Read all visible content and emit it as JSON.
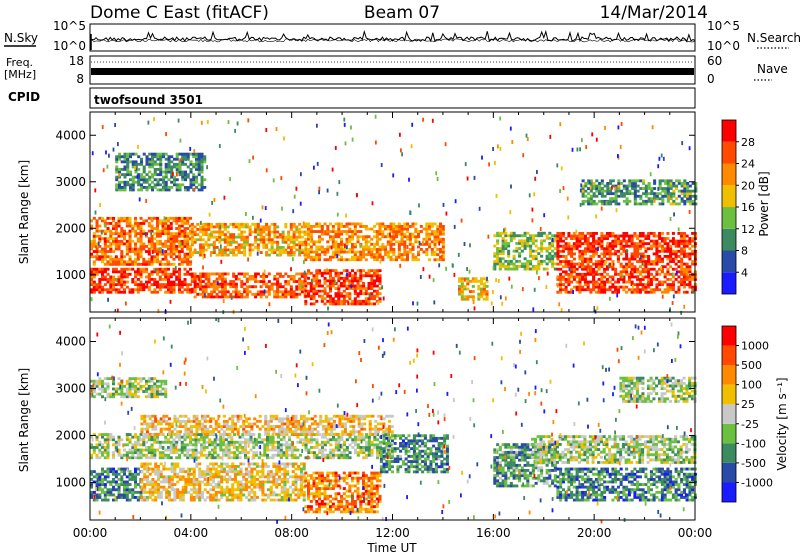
{
  "header": {
    "site": "Dome C East (fitACF)",
    "beam": "Beam 07",
    "date": "14/Mar/2014"
  },
  "top_panels": {
    "nsky_label": "N.Sky",
    "nsky_ticks": [
      "10^5",
      "10^0"
    ],
    "nsearch_label": "N.Search",
    "nsearch_ticks": [
      "10^5",
      "10^0"
    ],
    "freq_label_line1": "Freq.",
    "freq_label_line2": "[MHz]",
    "freq_ticks": [
      "18",
      "8"
    ],
    "nave_label": "Nave",
    "nave_ticks": [
      "60",
      "0"
    ],
    "cpid_label": "CPID",
    "cpid_value": "twofsound 3501"
  },
  "chart_data": [
    {
      "type": "heatmap",
      "name": "power",
      "ylabel": "Slant Range [km]",
      "ylim": [
        200,
        4500
      ],
      "yticks": [
        1000,
        2000,
        3000,
        4000
      ],
      "xlim": [
        0,
        24
      ],
      "colorbar_label": "Power [dB]",
      "colorbar_ticks": [
        "4",
        "8",
        "12",
        "16",
        "20",
        "24",
        "28"
      ],
      "colorbar_colors": [
        "#1b1bff",
        "#2a4aa8",
        "#3c8a60",
        "#6cc040",
        "#f0c000",
        "#ff8a00",
        "#ff4a00",
        "#ff0000"
      ],
      "regions": [
        {
          "t0": 0.0,
          "t1": 4.0,
          "r0": 600,
          "r1": 1100,
          "level": 0.85
        },
        {
          "t0": 0.0,
          "t1": 4.0,
          "r0": 1200,
          "r1": 2200,
          "level": 0.75
        },
        {
          "t0": 4.0,
          "t1": 8.5,
          "r0": 500,
          "r1": 1000,
          "level": 0.8
        },
        {
          "t0": 4.0,
          "t1": 8.5,
          "r0": 1400,
          "r1": 2100,
          "level": 0.65
        },
        {
          "t0": 8.5,
          "t1": 11.5,
          "r0": 350,
          "r1": 1100,
          "level": 0.85
        },
        {
          "t0": 8.5,
          "t1": 14.0,
          "r0": 1300,
          "r1": 2100,
          "level": 0.7
        },
        {
          "t0": 14.6,
          "t1": 15.8,
          "r0": 450,
          "r1": 900,
          "level": 0.6
        },
        {
          "t0": 16.0,
          "t1": 18.5,
          "r0": 1100,
          "r1": 1900,
          "level": 0.45
        },
        {
          "t0": 18.5,
          "t1": 24.0,
          "r0": 600,
          "r1": 1900,
          "level": 0.85
        },
        {
          "t0": 1.0,
          "t1": 4.5,
          "r0": 2800,
          "r1": 3600,
          "level": 0.3
        },
        {
          "t0": 19.5,
          "t1": 24.0,
          "r0": 2500,
          "r1": 3000,
          "level": 0.35
        }
      ]
    },
    {
      "type": "heatmap",
      "name": "velocity",
      "ylabel": "Slant Range [km]",
      "ylim": [
        200,
        4500
      ],
      "yticks": [
        1000,
        2000,
        3000,
        4000
      ],
      "xlim": [
        0,
        24
      ],
      "xticks": [
        "00:00",
        "04:00",
        "08:00",
        "12:00",
        "16:00",
        "20:00",
        "00:00"
      ],
      "xlabel": "Time UT",
      "colorbar_label": "Velocity [m s⁻¹]",
      "colorbar_ticks": [
        "1000",
        "500",
        "100",
        "25",
        "-25",
        "-100",
        "-500",
        "-1000"
      ],
      "colorbar_colors": [
        "#1b1bff",
        "#2a4aa8",
        "#3c8a60",
        "#6cc040",
        "#c8c8c8",
        "#f0c000",
        "#ff8a00",
        "#ff4a00",
        "#ff0000"
      ],
      "regions": [
        {
          "t0": 0.0,
          "t1": 2.0,
          "r0": 600,
          "r1": 1300,
          "level": 0.25
        },
        {
          "t0": 2.0,
          "t1": 8.5,
          "r0": 600,
          "r1": 1400,
          "level": 0.6
        },
        {
          "t0": 8.5,
          "t1": 11.5,
          "r0": 350,
          "r1": 1200,
          "level": 0.75
        },
        {
          "t0": 0.0,
          "t1": 12.0,
          "r0": 1500,
          "r1": 2000,
          "level": 0.45
        },
        {
          "t0": 2.0,
          "t1": 12.0,
          "r0": 2000,
          "r1": 2400,
          "level": 0.62
        },
        {
          "t0": 11.5,
          "t1": 14.2,
          "r0": 1200,
          "r1": 2000,
          "level": 0.28
        },
        {
          "t0": 16.0,
          "t1": 18.5,
          "r0": 900,
          "r1": 1800,
          "level": 0.3
        },
        {
          "t0": 18.5,
          "t1": 24.0,
          "r0": 600,
          "r1": 1300,
          "level": 0.25
        },
        {
          "t0": 17.5,
          "t1": 24.0,
          "r0": 1400,
          "r1": 2000,
          "level": 0.45
        },
        {
          "t0": 0.0,
          "t1": 3.0,
          "r0": 2800,
          "r1": 3200,
          "level": 0.45
        },
        {
          "t0": 21.0,
          "t1": 24.0,
          "r0": 2700,
          "r1": 3200,
          "level": 0.45
        }
      ]
    }
  ]
}
